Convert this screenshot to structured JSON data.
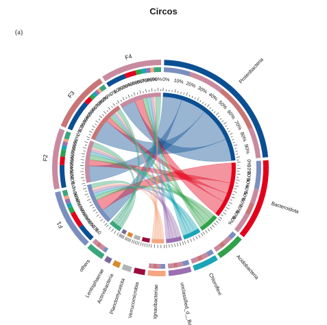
{
  "figure": {
    "title": "Circos",
    "panel_label": "(a)"
  },
  "chart_data": {
    "type": "chord",
    "tick_labels": [
      "0%",
      "10%",
      "20%",
      "30%",
      "40%",
      "50%",
      "60%",
      "70%",
      "80%",
      "90%"
    ],
    "groups": [
      {
        "name": "Proteobacteria",
        "kind": "taxon",
        "color": "#0b4f93",
        "share": 0.3
      },
      {
        "name": "Bacteroidota",
        "kind": "taxon",
        "color": "#e3001b",
        "share": 0.16
      },
      {
        "name": "Acidobacteria",
        "kind": "taxon",
        "color": "#30a14a",
        "share": 0.055
      },
      {
        "name": "Chloroflexi",
        "kind": "taxon",
        "color": "#1aa4b7",
        "share": 0.05
      },
      {
        "name": "unclassified_d__Bacteria",
        "kind": "taxon",
        "color": "#9b6fb2",
        "share": 0.045
      },
      {
        "name": "Ignavibacteriae",
        "kind": "taxon",
        "color": "#f6a580",
        "share": 0.035
      },
      {
        "name": "Verrucomicrobia",
        "kind": "taxon",
        "color": "#9e0b3f",
        "share": 0.022
      },
      {
        "name": "Planctomycetota",
        "kind": "taxon",
        "color": "#b3b3b3",
        "share": 0.018
      },
      {
        "name": "Actinobacteria",
        "kind": "taxon",
        "color": "#d98b2b",
        "share": 0.014
      },
      {
        "name": "Lentisphaerae",
        "kind": "taxon",
        "color": "#7a6a9c",
        "share": 0.012
      },
      {
        "name": "others",
        "kind": "taxon",
        "color": "#3aa67d",
        "share": 0.035
      },
      {
        "name": "F1",
        "kind": "sample",
        "color": "#7b8fbf",
        "share": 0.12
      },
      {
        "name": "F2",
        "kind": "sample",
        "color": "#c98aa0",
        "share": 0.12
      },
      {
        "name": "F3",
        "kind": "sample",
        "color": "#c97575",
        "share": 0.12
      },
      {
        "name": "F4",
        "kind": "sample",
        "color": "#c98aa0",
        "share": 0.12
      }
    ],
    "sample_composition": {
      "F1": {
        "Proteobacteria": 0.3,
        "Bacteroidota": 0.28,
        "Acidobacteria": 0.1,
        "Chloroflexi": 0.08,
        "unclassified_d__Bacteria": 0.08,
        "Ignavibacteriae": 0.06,
        "others": 0.1
      },
      "F2": {
        "Proteobacteria": 0.4,
        "Bacteroidota": 0.15,
        "Acidobacteria": 0.12,
        "Chloroflexi": 0.08,
        "unclassified_d__Bacteria": 0.07,
        "Ignavibacteriae": 0.05,
        "others": 0.13
      },
      "F3": {
        "Proteobacteria": 0.55,
        "Bacteroidota": 0.12,
        "Acidobacteria": 0.07,
        "Chloroflexi": 0.06,
        "unclassified_d__Bacteria": 0.05,
        "Ignavibacteriae": 0.05,
        "others": 0.1
      },
      "F4": {
        "Proteobacteria": 0.35,
        "Bacteroidota": 0.2,
        "Acidobacteria": 0.1,
        "Chloroflexi": 0.09,
        "unclassified_d__Bacteria": 0.07,
        "Ignavibacteriae": 0.06,
        "others": 0.13
      }
    }
  }
}
